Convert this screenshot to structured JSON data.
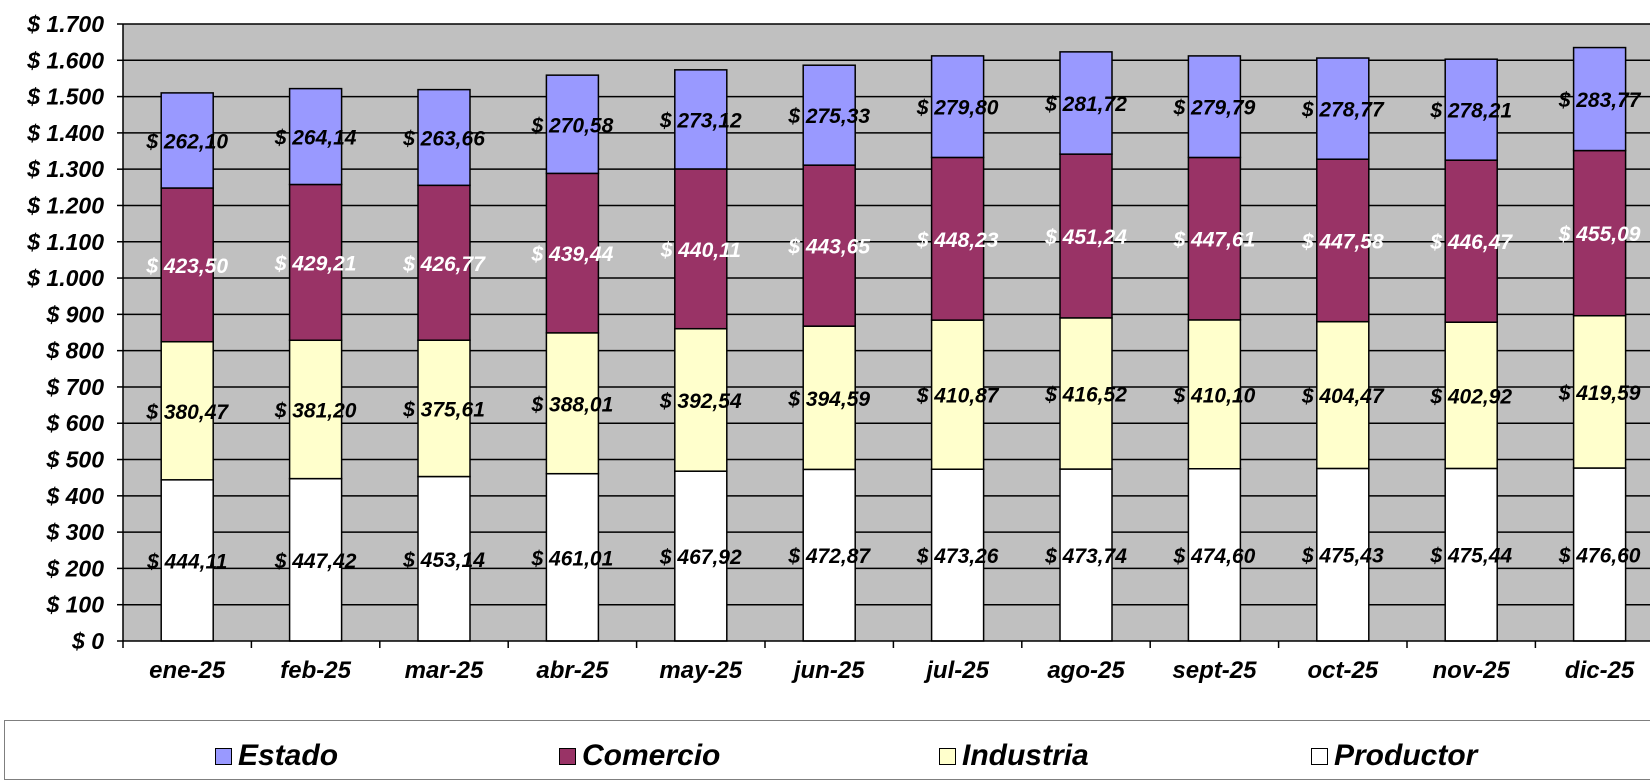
{
  "chart_data": {
    "type": "bar",
    "stacked": true,
    "categories": [
      "ene-25",
      "feb-25",
      "mar-25",
      "abr-25",
      "may-25",
      "jun-25",
      "jul-25",
      "ago-25",
      "sept-25",
      "oct-25",
      "nov-25",
      "dic-25"
    ],
    "series": [
      {
        "name": "Productor",
        "color": "#ffffff",
        "label_color": "#000000",
        "values": [
          444.11,
          447.42,
          453.14,
          461.01,
          467.92,
          472.87,
          473.26,
          473.74,
          474.6,
          475.43,
          475.44,
          476.6
        ],
        "labels": [
          "$ 444,11",
          "$ 447,42",
          "$ 453,14",
          "$ 461,01",
          "$ 467,92",
          "$ 472,87",
          "$ 473,26",
          "$ 473,74",
          "$ 474,60",
          "$ 475,43",
          "$ 475,44",
          "$ 476,60"
        ]
      },
      {
        "name": "Industria",
        "color": "#ffffcc",
        "label_color": "#000000",
        "values": [
          380.47,
          381.2,
          375.61,
          388.01,
          392.54,
          394.59,
          410.87,
          416.52,
          410.1,
          404.47,
          402.92,
          419.59
        ],
        "labels": [
          "$ 380,47",
          "$ 381,20",
          "$ 375,61",
          "$ 388,01",
          "$ 392,54",
          "$ 394,59",
          "$ 410,87",
          "$ 416,52",
          "$ 410,10",
          "$ 404,47",
          "$ 402,92",
          "$ 419,59"
        ]
      },
      {
        "name": "Comercio",
        "color": "#993366",
        "label_color": "#ffffff",
        "values": [
          423.5,
          429.21,
          426.77,
          439.44,
          440.11,
          443.65,
          448.23,
          451.24,
          447.61,
          447.58,
          446.47,
          455.09
        ],
        "labels": [
          "$ 423,50",
          "$ 429,21",
          "$ 426,77",
          "$ 439,44",
          "$ 440,11",
          "$ 443,65",
          "$ 448,23",
          "$ 451,24",
          "$ 447,61",
          "$ 447,58",
          "$ 446,47",
          "$ 455,09"
        ]
      },
      {
        "name": "Estado",
        "color": "#9999ff",
        "label_color": "#000000",
        "values": [
          262.1,
          264.14,
          263.66,
          270.58,
          273.12,
          275.33,
          279.8,
          281.72,
          279.79,
          278.77,
          278.21,
          283.77
        ],
        "labels": [
          "$ 262,10",
          "$ 264,14",
          "$ 263,66",
          "$ 270,58",
          "$ 273,12",
          "$ 275,33",
          "$ 279,80",
          "$ 281,72",
          "$ 279,79",
          "$ 278,77",
          "$ 278,21",
          "$ 283,77"
        ]
      }
    ],
    "ylim": [
      0,
      1700
    ],
    "y_ticks": [
      0,
      100,
      200,
      300,
      400,
      500,
      600,
      700,
      800,
      900,
      1000,
      1100,
      1200,
      1300,
      1400,
      1500,
      1600,
      1700
    ],
    "y_tick_labels": [
      "$ 0",
      "$ 100",
      "$ 200",
      "$ 300",
      "$ 400",
      "$ 500",
      "$ 600",
      "$ 700",
      "$ 800",
      "$ 900",
      "$ 1.000",
      "$ 1.100",
      "$ 1.200",
      "$ 1.300",
      "$ 1.400",
      "$ 1.500",
      "$ 1.600",
      "$ 1.700"
    ],
    "grid": true,
    "plot_background": "#c0c0c0",
    "legend_position": "bottom",
    "legend_order": [
      "Estado",
      "Comercio",
      "Industria",
      "Productor"
    ]
  },
  "legend": {
    "items": [
      {
        "label": "Estado",
        "color": "#9999ff"
      },
      {
        "label": "Comercio",
        "color": "#993366"
      },
      {
        "label": "Industria",
        "color": "#ffffcc"
      },
      {
        "label": "Productor",
        "color": "#ffffff"
      }
    ]
  }
}
